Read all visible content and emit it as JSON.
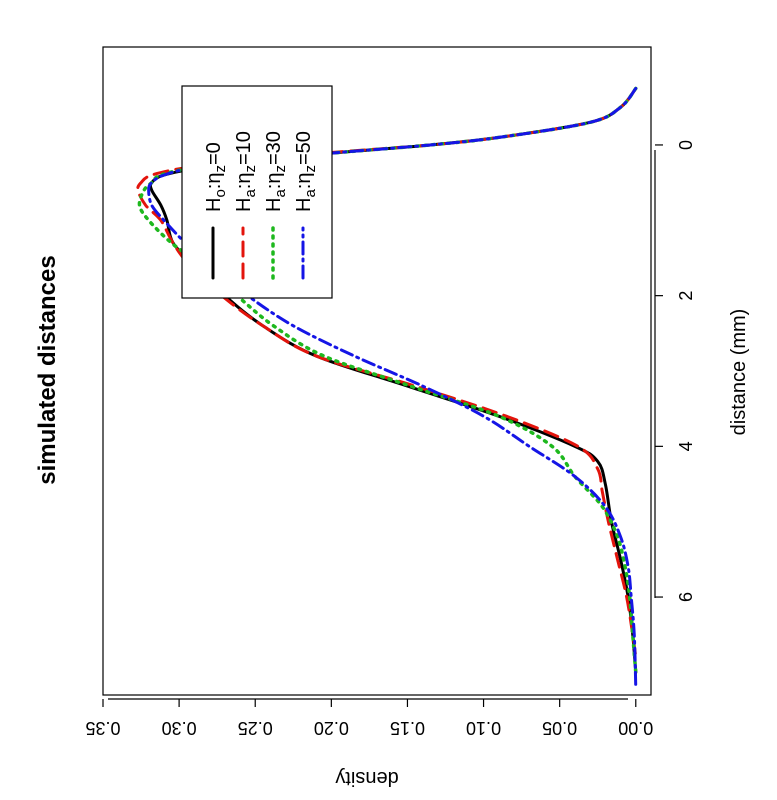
{
  "chart_data": {
    "type": "line",
    "title": "simulated distances",
    "xlabel": "distance (mm)",
    "ylabel": "density",
    "xlim": [
      -1.3,
      7.3
    ],
    "ylim": [
      -0.01,
      0.35
    ],
    "xticks": [
      0,
      2,
      4,
      6
    ],
    "yticks": [
      0.0,
      0.05,
      0.1,
      0.15,
      0.2,
      0.25,
      0.3,
      0.35
    ],
    "xtick_labels": [
      "0",
      "2",
      "4",
      "6"
    ],
    "ytick_labels": [
      "0.00",
      "0.05",
      "0.10",
      "0.15",
      "0.20",
      "0.25",
      "0.30",
      "0.35"
    ],
    "orientation": "rotated 90° clockwise (x axis runs down the page, y axis runs right-to-left)",
    "legend_position": "top-right",
    "series": [
      {
        "name": "H",
        "label_sub": "o",
        "label_mid": ":η",
        "label_sub2": "z",
        "label_tail": "=0",
        "color": "#000000",
        "dash": "",
        "x": [
          -0.75,
          -0.5,
          -0.3,
          -0.1,
          0.0,
          0.1,
          0.2,
          0.3,
          0.4,
          0.5,
          0.6,
          0.8,
          1.0,
          1.3,
          1.6,
          2.0,
          2.4,
          2.8,
          3.2,
          3.6,
          4.0,
          4.2,
          4.5,
          5.0,
          5.5,
          6.0,
          6.5,
          7.0
        ],
        "y": [
          0.0,
          0.01,
          0.03,
          0.09,
          0.135,
          0.195,
          0.245,
          0.285,
          0.31,
          0.318,
          0.318,
          0.312,
          0.308,
          0.304,
          0.29,
          0.27,
          0.245,
          0.21,
          0.15,
          0.09,
          0.04,
          0.025,
          0.02,
          0.016,
          0.01,
          0.005,
          0.002,
          0.0
        ]
      },
      {
        "name": "H",
        "label_sub": "a",
        "label_mid": ":η",
        "label_sub2": "z",
        "label_tail": "=10",
        "color": "#e3140c",
        "dash": "14,8",
        "x": [
          -0.75,
          -0.5,
          -0.3,
          -0.1,
          0.0,
          0.1,
          0.2,
          0.3,
          0.4,
          0.5,
          0.6,
          0.8,
          1.0,
          1.3,
          1.6,
          2.0,
          2.4,
          2.8,
          3.2,
          3.6,
          4.0,
          4.3,
          4.6,
          5.0,
          5.5,
          6.0,
          6.5,
          6.8
        ],
        "y": [
          0.0,
          0.01,
          0.03,
          0.09,
          0.135,
          0.2,
          0.255,
          0.295,
          0.318,
          0.325,
          0.327,
          0.322,
          0.312,
          0.304,
          0.293,
          0.272,
          0.245,
          0.21,
          0.145,
          0.085,
          0.038,
          0.025,
          0.022,
          0.018,
          0.012,
          0.006,
          0.002,
          0.0
        ]
      },
      {
        "name": "H",
        "label_sub": "a",
        "label_mid": ":η",
        "label_sub2": "z",
        "label_tail": "=30",
        "color": "#1eb81e",
        "dash": "2,6",
        "x": [
          -0.75,
          -0.5,
          -0.3,
          -0.1,
          0.0,
          0.1,
          0.2,
          0.3,
          0.4,
          0.5,
          0.6,
          0.8,
          1.0,
          1.3,
          1.6,
          2.0,
          2.4,
          2.8,
          3.2,
          3.6,
          4.0,
          4.4,
          4.8,
          5.2,
          5.6,
          6.0,
          6.5,
          7.0
        ],
        "y": [
          0.0,
          0.01,
          0.03,
          0.09,
          0.135,
          0.195,
          0.25,
          0.29,
          0.312,
          0.318,
          0.323,
          0.326,
          0.32,
          0.305,
          0.285,
          0.262,
          0.238,
          0.205,
          0.148,
          0.09,
          0.055,
          0.04,
          0.022,
          0.012,
          0.007,
          0.004,
          0.002,
          0.0
        ]
      },
      {
        "name": "H",
        "label_sub": "a",
        "label_mid": ":η",
        "label_sub2": "z",
        "label_tail": "=50",
        "color": "#1515e6",
        "dash": "12,5,2,5",
        "x": [
          -0.75,
          -0.5,
          -0.3,
          -0.1,
          0.0,
          0.1,
          0.2,
          0.3,
          0.4,
          0.5,
          0.6,
          0.8,
          1.0,
          1.3,
          1.6,
          2.0,
          2.4,
          2.8,
          3.2,
          3.6,
          4.0,
          4.4,
          4.8,
          5.2,
          5.6,
          6.0,
          6.5,
          7.2
        ],
        "y": [
          0.0,
          0.01,
          0.03,
          0.09,
          0.135,
          0.195,
          0.25,
          0.29,
          0.31,
          0.318,
          0.32,
          0.318,
          0.31,
          0.296,
          0.28,
          0.255,
          0.225,
          0.185,
          0.14,
          0.1,
          0.07,
          0.04,
          0.02,
          0.01,
          0.005,
          0.003,
          0.001,
          0.0
        ]
      }
    ]
  }
}
